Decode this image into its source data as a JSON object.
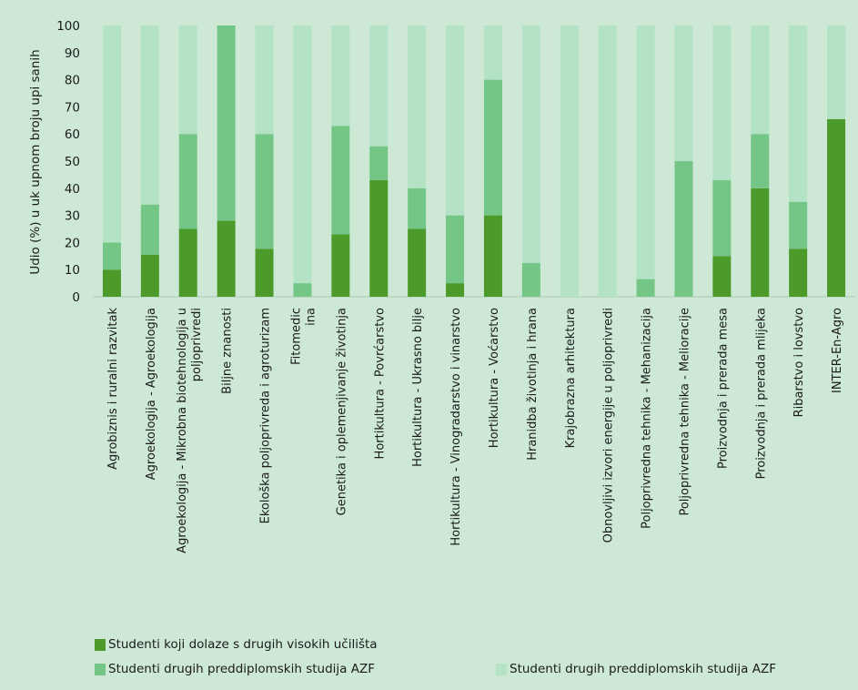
{
  "chart_data": {
    "type": "bar",
    "stacked": true,
    "ylabel": "Udio (%) u uk upnom broju upi sanih",
    "ylim": [
      0,
      100
    ],
    "yticks": [
      0,
      10,
      20,
      30,
      40,
      50,
      60,
      70,
      80,
      90,
      100
    ],
    "grid": false,
    "legend_placement": "bottom",
    "categories": [
      [
        "Agrobiznis i ruralni razvitak"
      ],
      [
        "Agroekologija - Agroekologija"
      ],
      [
        "Agroekologija - Mikrobna biotehnologija u",
        "poljoprivredi"
      ],
      [
        "Biljne znanosti"
      ],
      [
        "Ekološka poljoprivreda i agroturizam"
      ],
      [
        "Fitomedic",
        "ina"
      ],
      [
        "Genetika i oplemenjivanje životinja"
      ],
      [
        "Hortikultura - Povrćarstvo"
      ],
      [
        "Hortikultura - Ukrasno bilje"
      ],
      [
        "Hortikultura - Vinogradarstvo i vinarstvo"
      ],
      [
        "Hortikultura - Voćarstvo"
      ],
      [
        "Hranidba životinja i hrana"
      ],
      [
        "Krajobrazna arhitektura"
      ],
      [
        "Obnovljivi izvori energije u poljoprivredi"
      ],
      [
        "Poljoprivredna tehnika - Mehanizacija"
      ],
      [
        "Poljoprivredna tehnika - Melioracije"
      ],
      [
        "Proizvodnja i prerada mesa"
      ],
      [
        "Proizvodnja i prerada mlijeka"
      ],
      [
        "Ribarstvo i lovstvo"
      ],
      [
        "INTER-En-Agro"
      ]
    ],
    "series": [
      {
        "name": "Studenti koji dolaze s drugih visokih učilišta",
        "color": "#4c9a2a",
        "values": [
          10,
          15.5,
          25,
          28,
          17.7,
          0,
          23,
          43,
          25,
          5,
          30,
          0,
          0,
          0,
          0,
          0,
          15,
          40,
          17.7,
          65.5
        ]
      },
      {
        "name": "Studenti drugih preddiplomskih studija AZF",
        "color": "#74c686",
        "values": [
          10,
          18.5,
          35,
          72,
          42.3,
          5,
          40,
          12.5,
          15,
          25,
          50,
          12.5,
          0,
          0,
          6.5,
          50,
          28,
          20,
          17.3,
          0
        ]
      },
      {
        "name": "Studenti drugih preddiplomskih studija AZF",
        "color": "#b3e2c4",
        "values": [
          80,
          66,
          40,
          0,
          40,
          95,
          37,
          44.5,
          60,
          70,
          20,
          87.5,
          100,
          100,
          93.5,
          50,
          57,
          40,
          65,
          34.5
        ]
      }
    ]
  }
}
